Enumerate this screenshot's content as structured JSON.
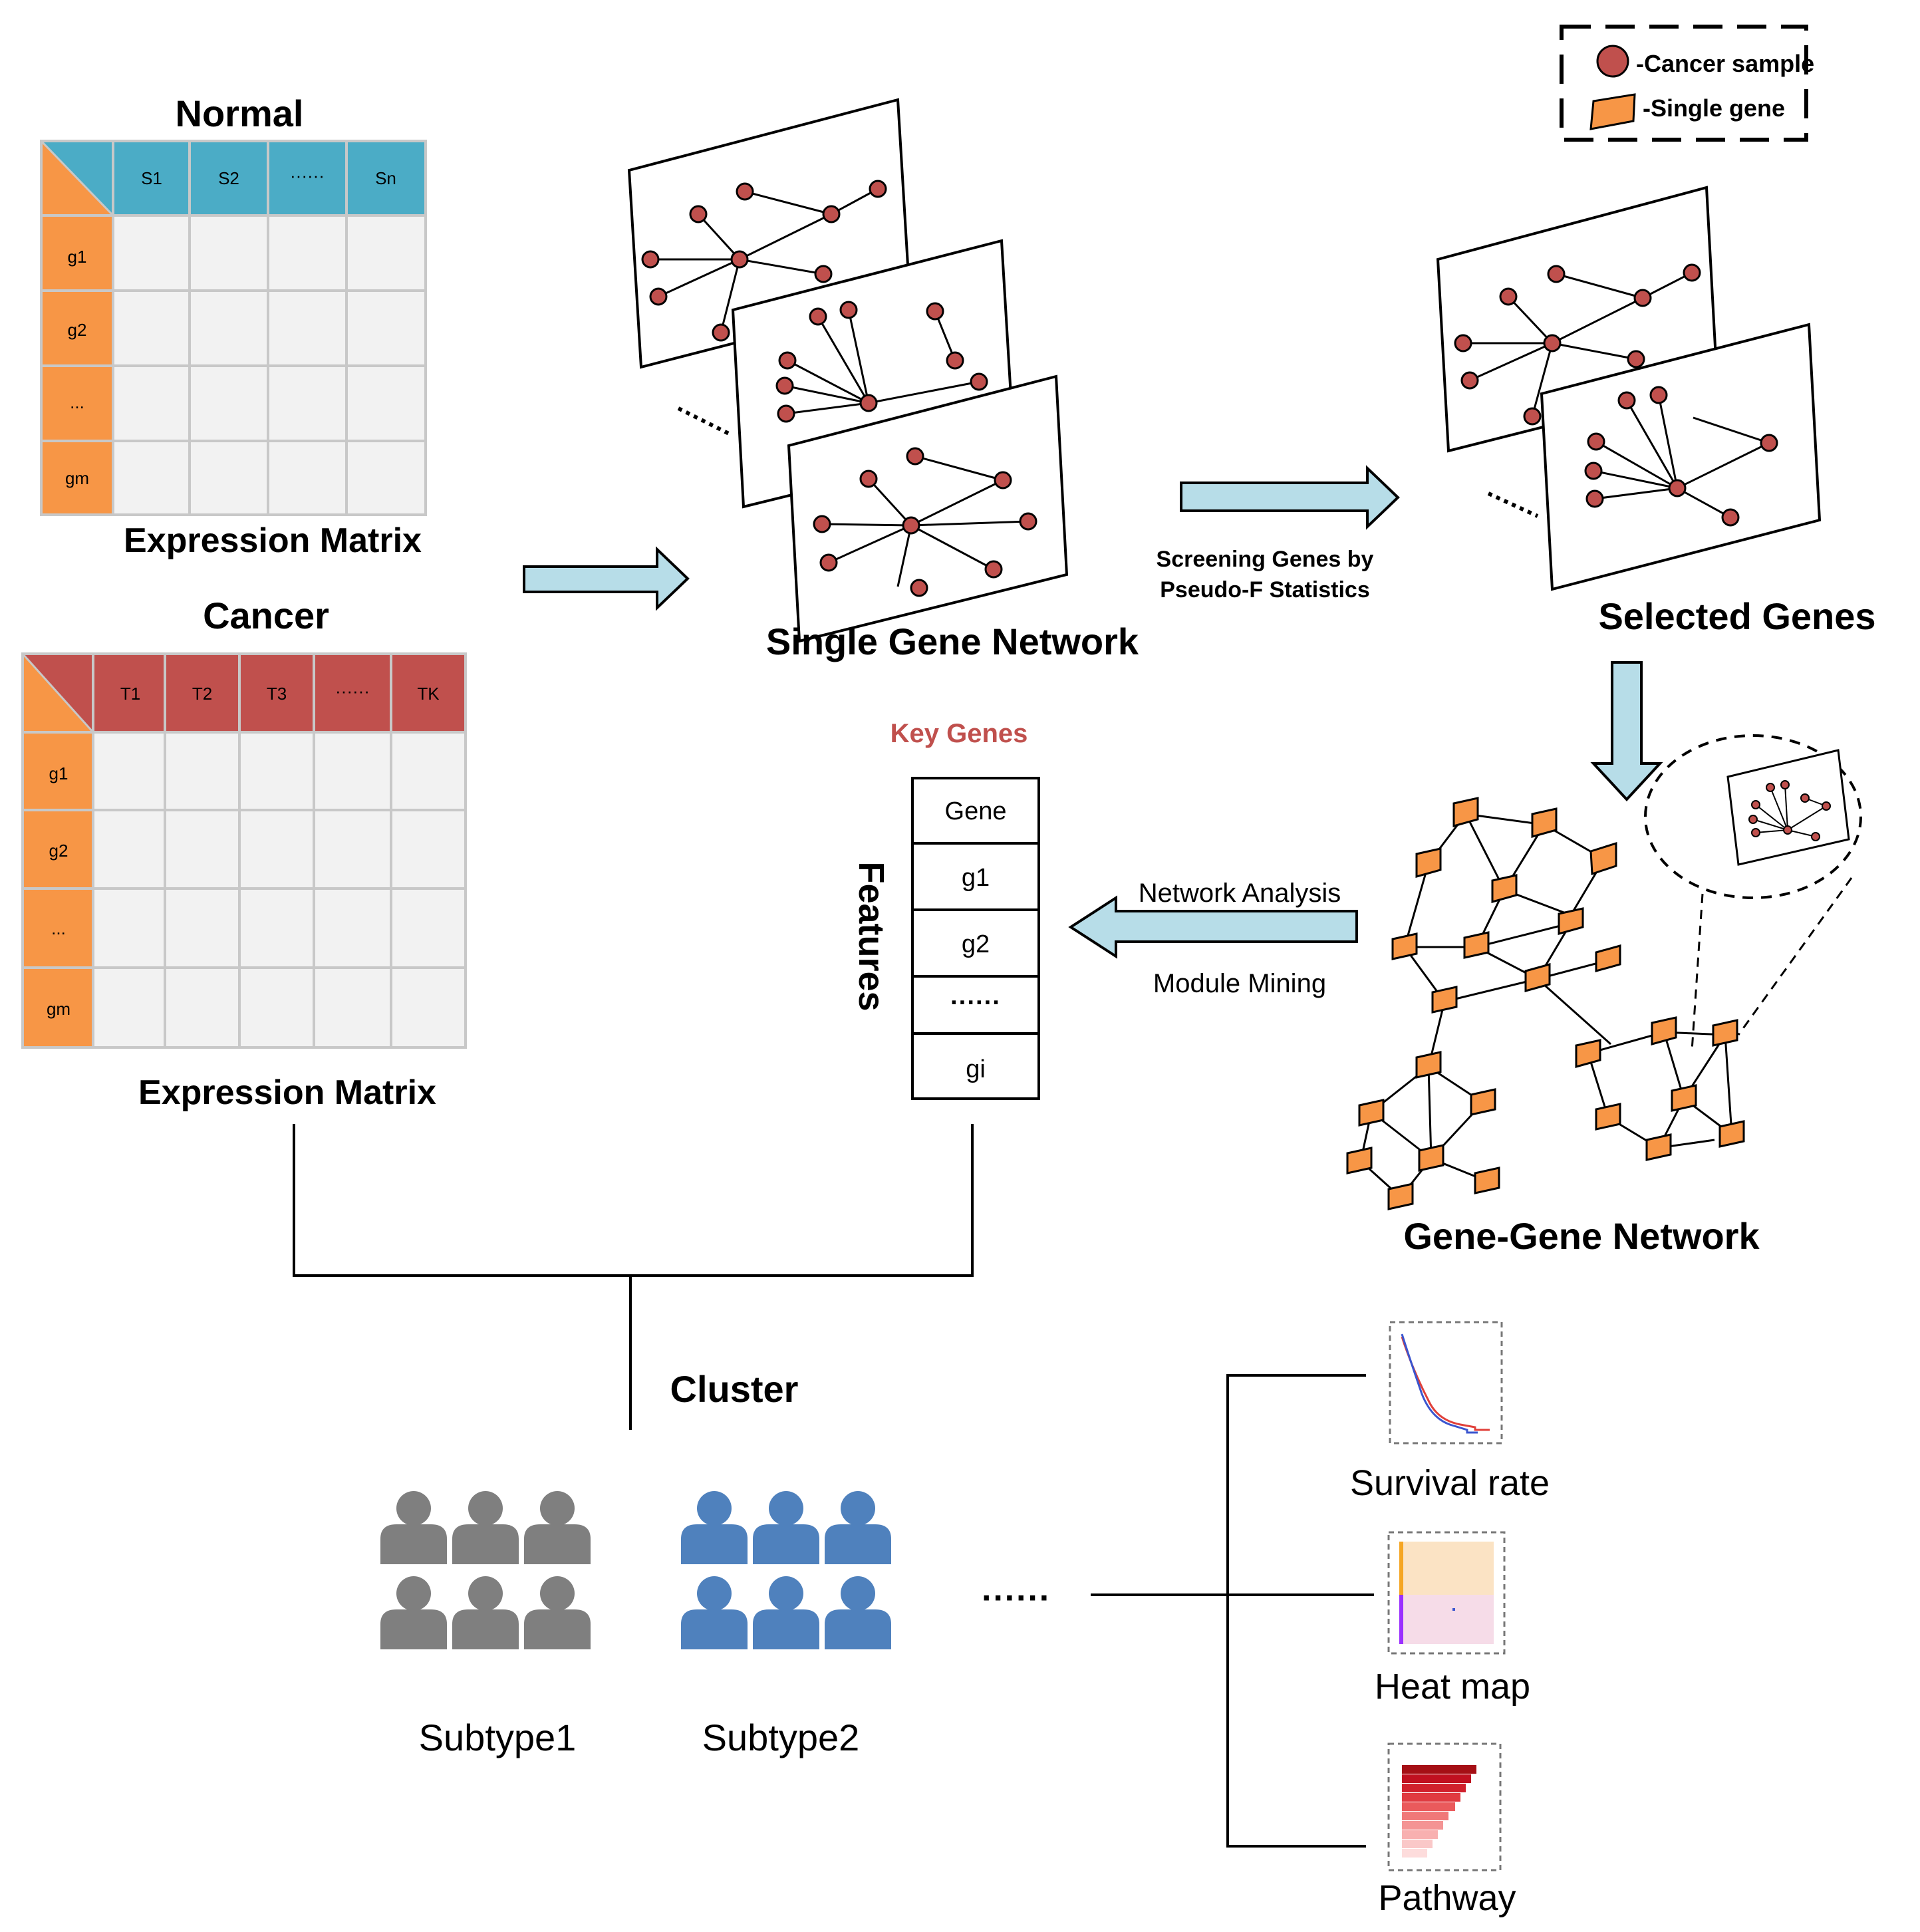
{
  "legend": {
    "cancer_sample": "-Cancer sample",
    "single_gene": "-Single gene"
  },
  "normal_matrix": {
    "title": "Normal",
    "caption": "Expression Matrix",
    "columns": [
      "S1",
      "S2",
      "······",
      "Sn"
    ],
    "rows": [
      "g1",
      "g2",
      "...",
      "gm"
    ],
    "header_color": "#4bacc6",
    "row_color": "#f79646"
  },
  "cancer_matrix": {
    "title": "Cancer",
    "caption": "Expression Matrix",
    "columns": [
      "T1",
      "T2",
      "T3",
      "······",
      "TK"
    ],
    "rows": [
      "g1",
      "g2",
      "...",
      "gm"
    ],
    "header_color": "#c0504d",
    "row_color": "#f79646"
  },
  "single_gene_network": {
    "label": "Single Gene Network"
  },
  "screening": {
    "line1": "Screening Genes by",
    "line2": "Pseudo-F Statistics"
  },
  "selected_genes": {
    "label": "Selected Genes"
  },
  "gene_gene_network": {
    "label": "Gene-Gene Network"
  },
  "network_arrow": {
    "top_label": "Network Analysis",
    "bottom_label": "Module Mining"
  },
  "key_genes": {
    "title": "Key Genes",
    "side_label": "Features",
    "rows": [
      "Gene",
      "g1",
      "g2",
      "······",
      "gi"
    ]
  },
  "cluster": {
    "label": "Cluster"
  },
  "subtypes": {
    "subtype1": "Subtype1",
    "subtype2": "Subtype2",
    "ellipsis": "······"
  },
  "outcomes": {
    "survival": "Survival rate",
    "heatmap": "Heat map",
    "pathway": "Pathway"
  },
  "colors": {
    "arrow_fill": "#b7dde8",
    "node_fill": "#c0504d",
    "gene_fill": "#f79646",
    "key_genes_title": "#c0504d",
    "subtype1_person": "#7f7f7f",
    "subtype2_person": "#4f81bd"
  }
}
